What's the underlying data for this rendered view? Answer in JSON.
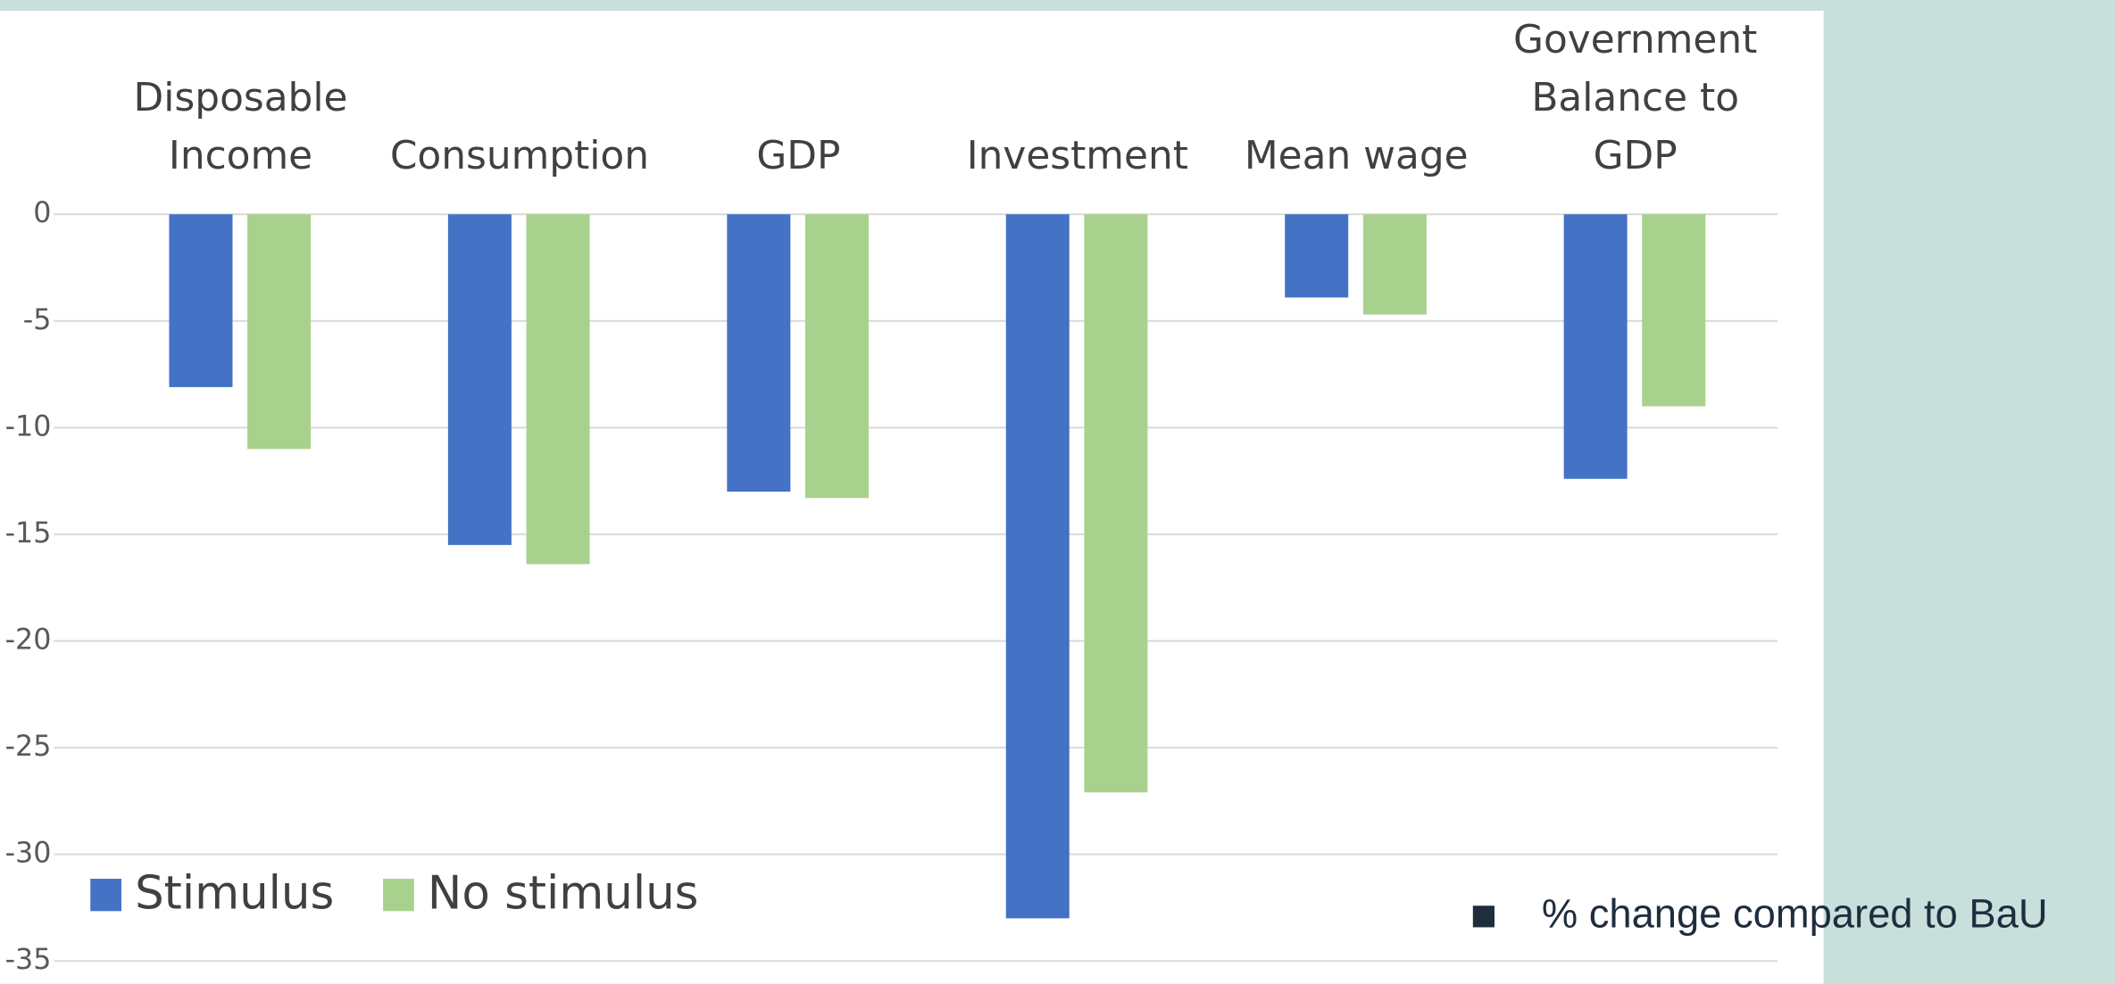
{
  "chart_data": {
    "type": "bar",
    "categories": [
      "Disposable Income",
      "Consumption",
      "GDP",
      "Investment",
      "Mean wage",
      "Government Balance to GDP"
    ],
    "series": [
      {
        "name": "Stimulus",
        "color": "#4472c4",
        "values": [
          -8.1,
          -15.5,
          -13,
          -33,
          -3.9,
          -12.4
        ]
      },
      {
        "name": "No stimulus",
        "color": "#a9d18e",
        "values": [
          -11,
          -16.4,
          -13.3,
          -27.1,
          -4.7,
          -9
        ]
      }
    ],
    "ylim": [
      -35,
      0
    ],
    "yticks": [
      0,
      -5,
      -10,
      -15,
      -20,
      -25,
      -30,
      -35
    ],
    "grid": true,
    "annotation": "% change compared to BaU"
  }
}
